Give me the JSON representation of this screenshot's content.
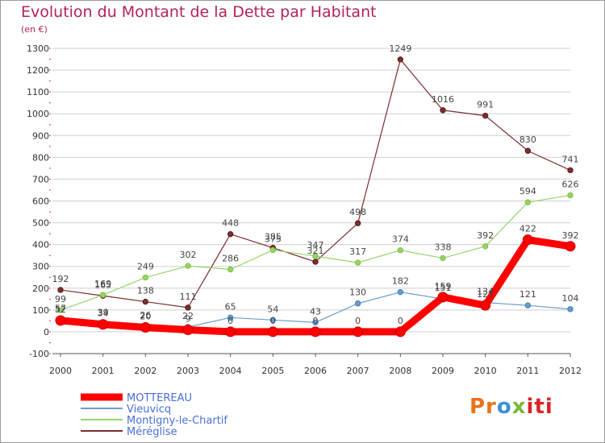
{
  "title": "Evolution du Montant de la Dette par Habitant",
  "subtitle": "(en €)",
  "logo_text": "Proxiti",
  "colors": {
    "title": "#b2235a",
    "grid": "#cfcfcf",
    "axis": "#555555",
    "tick_text": "#333333",
    "label_text": "#444444",
    "legend_text": "#4a6fd6"
  },
  "chart_data": {
    "type": "line",
    "title": "Evolution du Montant de la Dette par Habitant",
    "subtitle": "(en €)",
    "xlabel": "",
    "ylabel": "",
    "x": [
      "2000",
      "2001",
      "2002",
      "2003",
      "2004",
      "2005",
      "2006",
      "2007",
      "2008",
      "2009",
      "2010",
      "2011",
      "2012"
    ],
    "ylim": [
      -100,
      1300
    ],
    "yticks": [
      -100,
      0,
      100,
      200,
      300,
      400,
      500,
      600,
      700,
      800,
      900,
      1000,
      1100,
      1200,
      1300
    ],
    "grid": "horizontal",
    "legend_position": "bottom-left",
    "series": [
      {
        "name": "MOTTEREAU",
        "color": "#ff0000",
        "marker": "#cc0000",
        "width": 9,
        "values": [
          52,
          34,
          20,
          9,
          0,
          0,
          0,
          0,
          0,
          159,
          121,
          422,
          392
        ],
        "labels": [
          "52",
          "34",
          "20",
          "9",
          "0",
          "0",
          "0",
          "0",
          "0",
          "159",
          "121",
          "422",
          "392"
        ]
      },
      {
        "name": "Vieuvicq",
        "color": "#6b9ccd",
        "marker": "#3a7fc0",
        "width": 1.2,
        "values": [
          57,
          39,
          26,
          22,
          65,
          54,
          43,
          130,
          182,
          151,
          134,
          121,
          104
        ],
        "labels": [
          "57",
          "39",
          "26",
          "22",
          "65",
          "54",
          "43",
          "130",
          "182",
          "151",
          "134",
          "121",
          "104"
        ]
      },
      {
        "name": "Montigny-le-Chartif",
        "color": "#99d36a",
        "marker": "#7bc143",
        "width": 1.2,
        "values": [
          99,
          169,
          249,
          302,
          286,
          375,
          347,
          317,
          374,
          338,
          392,
          594,
          626
        ],
        "labels": [
          "99",
          "169",
          "249",
          "302",
          "286",
          "375",
          "347",
          "317",
          "374",
          "338",
          "392",
          "594",
          "626"
        ]
      },
      {
        "name": "Méréglise",
        "color": "#7a2e2e",
        "marker": "#5c1a1a",
        "width": 1.2,
        "values": [
          192,
          165,
          138,
          111,
          448,
          385,
          321,
          498,
          1249,
          1016,
          991,
          830,
          741
        ],
        "labels": [
          "192",
          "165",
          "138",
          "111",
          "448",
          "385",
          "321",
          "498",
          "1249",
          "1016",
          "991",
          "830",
          "741"
        ]
      }
    ]
  }
}
